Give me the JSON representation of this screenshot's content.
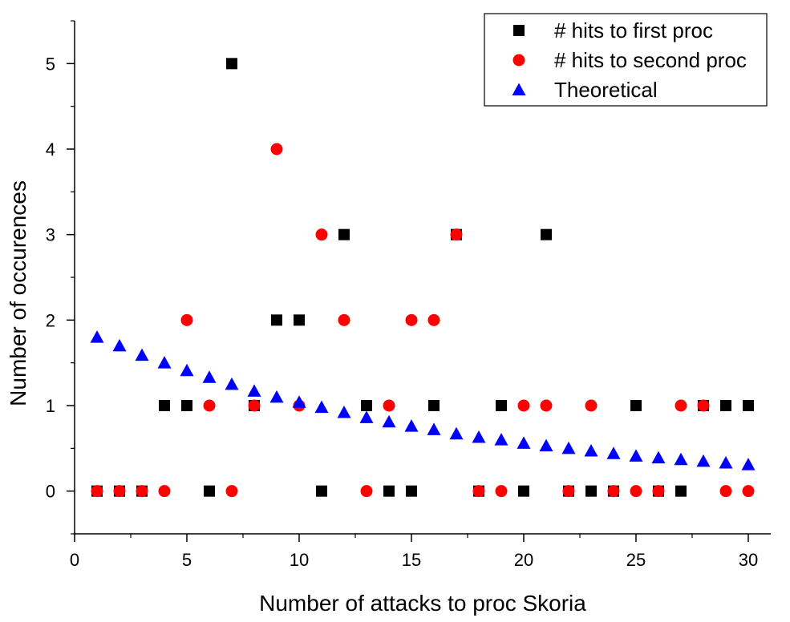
{
  "chart_data": {
    "type": "scatter",
    "title": "",
    "xlabel": "Number of attacks to proc Skoria",
    "ylabel": "Number of occurences",
    "xlim": [
      0,
      31
    ],
    "ylim": [
      -0.5,
      5.5
    ],
    "xticks": [
      0,
      5,
      10,
      15,
      20,
      25,
      30
    ],
    "yticks": [
      0,
      1,
      2,
      3,
      4,
      5
    ],
    "xtick_labels": [
      "0",
      "5",
      "10",
      "15",
      "20",
      "25",
      "30"
    ],
    "ytick_labels": [
      "0",
      "1",
      "2",
      "3",
      "4",
      "5"
    ],
    "grid": false,
    "legend_position": "top-right",
    "series": [
      {
        "name": "# hits to first proc",
        "marker": "square",
        "color": "#000000",
        "x": [
          1,
          2,
          3,
          4,
          5,
          6,
          7,
          8,
          9,
          10,
          11,
          12,
          13,
          14,
          15,
          16,
          17,
          18,
          19,
          20,
          21,
          22,
          23,
          24,
          25,
          26,
          27,
          28,
          29,
          30
        ],
        "y": [
          0,
          0,
          0,
          1,
          1,
          0,
          5,
          1,
          2,
          2,
          0,
          3,
          1,
          0,
          0,
          1,
          3,
          0,
          1,
          0,
          3,
          0,
          0,
          0,
          1,
          0,
          0,
          1,
          1,
          1
        ]
      },
      {
        "name": "# hits to second proc",
        "marker": "circle",
        "color": "#ff0000",
        "x": [
          1,
          2,
          3,
          4,
          5,
          6,
          7,
          8,
          9,
          10,
          11,
          12,
          13,
          14,
          15,
          16,
          17,
          18,
          19,
          20,
          21,
          22,
          23,
          24,
          25,
          26,
          27,
          28,
          29,
          30
        ],
        "y": [
          0,
          0,
          0,
          0,
          2,
          1,
          0,
          1,
          4,
          1,
          3,
          2,
          0,
          1,
          2,
          2,
          3,
          0,
          0,
          1,
          1,
          0,
          1,
          0,
          0,
          0,
          1,
          1,
          0,
          0
        ]
      },
      {
        "name": "Theoretical",
        "marker": "triangle",
        "color": "#0000ff",
        "x": [
          1,
          2,
          3,
          4,
          5,
          6,
          7,
          8,
          9,
          10,
          11,
          12,
          13,
          14,
          15,
          16,
          17,
          18,
          19,
          20,
          21,
          22,
          23,
          24,
          25,
          26,
          27,
          28,
          29,
          30
        ],
        "y": [
          1.8,
          1.7,
          1.59,
          1.5,
          1.41,
          1.33,
          1.25,
          1.17,
          1.1,
          1.04,
          0.98,
          0.92,
          0.86,
          0.81,
          0.76,
          0.72,
          0.67,
          0.63,
          0.6,
          0.56,
          0.53,
          0.5,
          0.47,
          0.44,
          0.41,
          0.39,
          0.37,
          0.35,
          0.33,
          0.31
        ]
      }
    ]
  }
}
